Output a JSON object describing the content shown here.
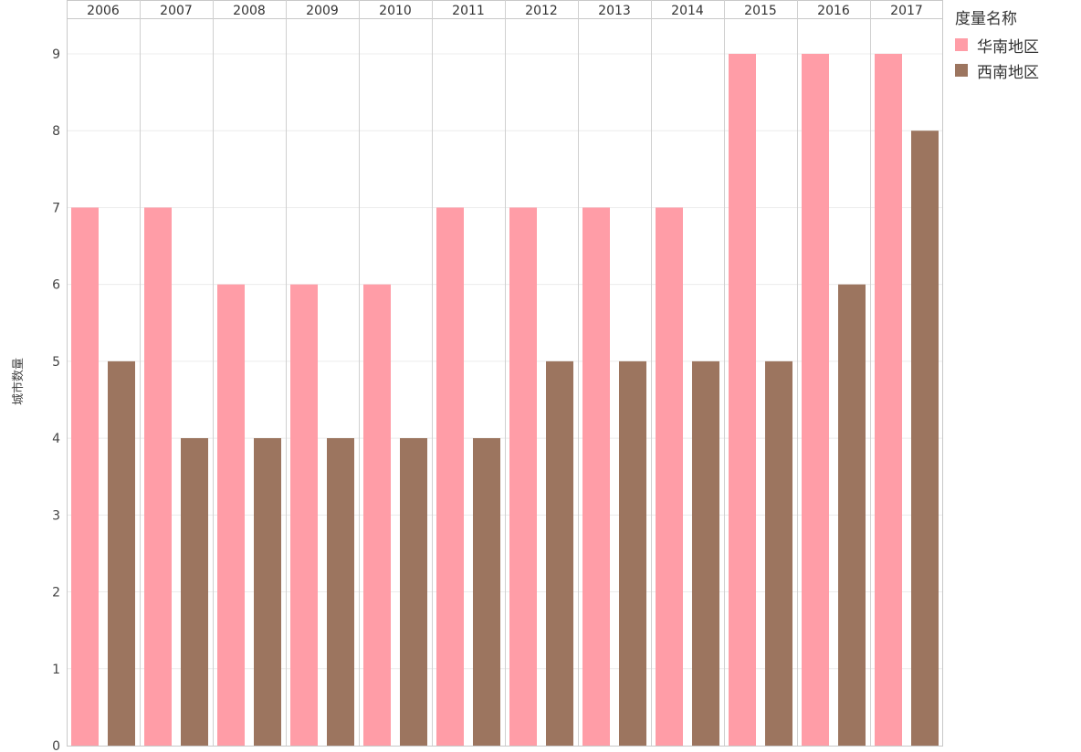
{
  "chart_data": {
    "type": "bar",
    "categories": [
      "2006",
      "2007",
      "2008",
      "2009",
      "2010",
      "2011",
      "2012",
      "2013",
      "2014",
      "2015",
      "2016",
      "2017"
    ],
    "series": [
      {
        "name": "华南地区",
        "color": "#FF9DA7",
        "values": [
          7,
          7,
          6,
          6,
          6,
          7,
          7,
          7,
          7,
          9,
          9,
          9
        ]
      },
      {
        "name": "西南地区",
        "color": "#9C755F",
        "values": [
          5,
          4,
          4,
          4,
          4,
          4,
          5,
          5,
          5,
          5,
          6,
          8
        ]
      }
    ],
    "ylabel": "城市数量",
    "ylim": [
      0,
      9.5
    ],
    "yticks": [
      0,
      1,
      2,
      3,
      4,
      5,
      6,
      7,
      8,
      9
    ],
    "grid": true,
    "legend_title": "度量名称",
    "legend_position": "top-right"
  }
}
